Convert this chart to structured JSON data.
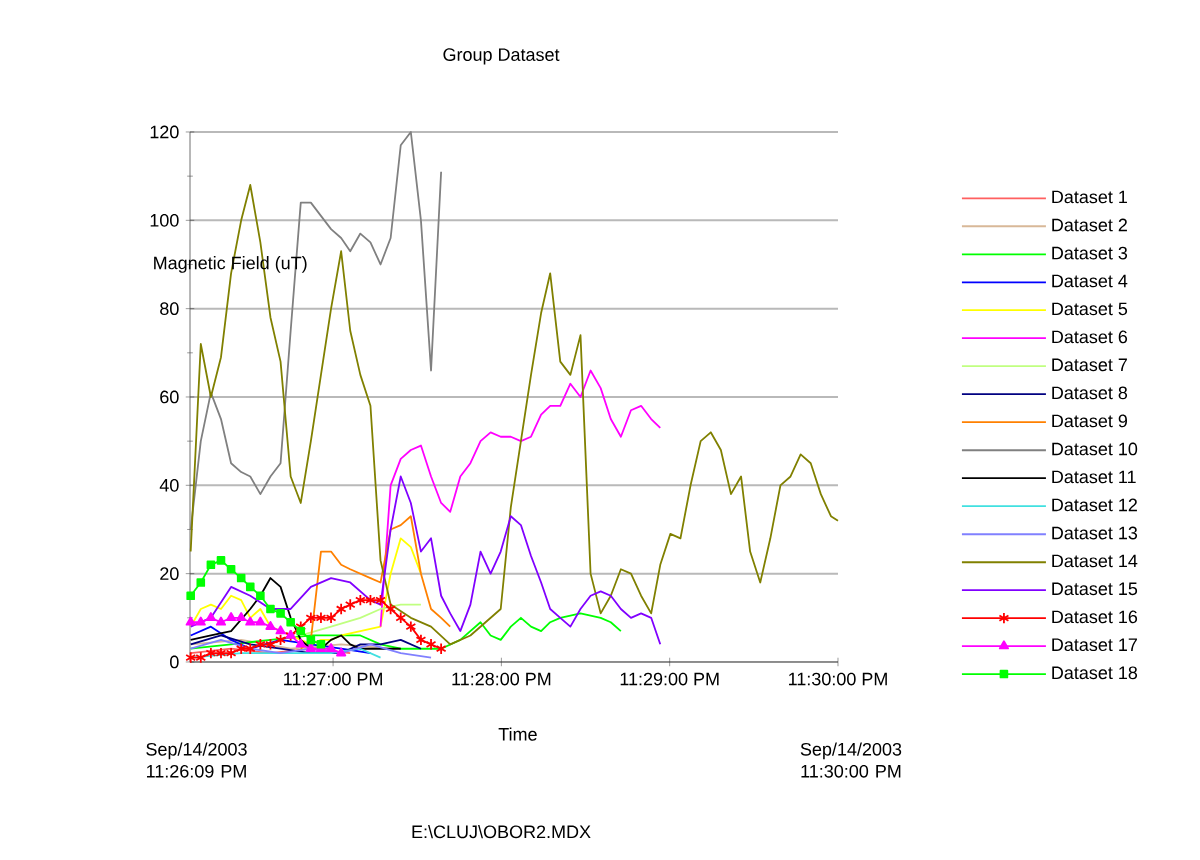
{
  "chart_data": {
    "type": "line",
    "title": "Group Dataset",
    "xlabel": "Time",
    "ylabel": "Magnetic Field (uT)",
    "xlim": [
      23.435833,
      23.5
    ],
    "ylim": [
      0,
      120
    ],
    "xticks": [
      {
        "value": 23.45,
        "label": "11:27:00 PM"
      },
      {
        "value": 23.466667,
        "label": "11:28:00 PM"
      },
      {
        "value": 23.483333,
        "label": "11:29:00 PM"
      },
      {
        "value": 23.5,
        "label": "11:30:00 PM"
      }
    ],
    "yticks": [
      0,
      20,
      40,
      60,
      80,
      100,
      120
    ],
    "grid": "y",
    "legend": "right",
    "annotations": [
      "Sep/14/2003 11:26:09 PM",
      "Sep/14/2003 11:30:00 PM",
      "E:\\CLUJ\\OBOR2.MDX"
    ],
    "series": [
      {
        "name": "Dataset 1",
        "color": "#ff6060",
        "x": [
          23.4359,
          23.4399,
          23.4438,
          23.4478,
          23.4517
        ],
        "values": [
          2,
          3,
          2,
          3,
          2
        ]
      },
      {
        "name": "Dataset 2",
        "color": "#d8b898",
        "x": [
          23.4359,
          23.4409,
          23.4458,
          23.4508,
          23.4557
        ],
        "values": [
          4,
          5,
          3,
          4,
          3
        ]
      },
      {
        "name": "Dataset 3",
        "color": "#00ff00",
        "x": [
          23.4359,
          23.4399,
          23.4438,
          23.4478,
          23.4508,
          23.4527,
          23.4547,
          23.4567,
          23.4587,
          23.4607,
          23.4626,
          23.4636,
          23.4646,
          23.4656,
          23.4666,
          23.4676,
          23.4686,
          23.4696,
          23.4706,
          23.4715,
          23.4725,
          23.4745,
          23.4765,
          23.4775,
          23.4785
        ],
        "values": [
          3,
          4,
          5,
          6,
          6,
          6,
          4,
          3,
          3,
          3,
          5,
          7,
          9,
          6,
          5,
          8,
          10,
          8,
          7,
          9,
          10,
          11,
          10,
          9,
          7
        ]
      },
      {
        "name": "Dataset 4",
        "color": "#0000ff",
        "x": [
          23.4359,
          23.4379,
          23.4399,
          23.4418,
          23.4448,
          23.4478,
          23.4508,
          23.4537
        ],
        "values": [
          6,
          8,
          5,
          3,
          5,
          4,
          3,
          2
        ]
      },
      {
        "name": "Dataset 5",
        "color": "#ffff00",
        "x": [
          23.4359,
          23.4369,
          23.4379,
          23.4389,
          23.4399,
          23.4409,
          23.4418,
          23.4428,
          23.4438,
          23.4448,
          23.4458,
          23.4468,
          23.4478,
          23.4488,
          23.4498,
          23.4508,
          23.4527,
          23.4547,
          23.4557,
          23.4567,
          23.4577,
          23.4587
        ],
        "values": [
          8,
          12,
          13,
          12,
          15,
          14,
          10,
          12,
          8,
          7,
          6,
          5,
          4,
          5,
          5,
          6,
          7,
          8,
          20,
          28,
          26,
          20
        ]
      },
      {
        "name": "Dataset 6",
        "color": "#ff00ff",
        "x": [
          23.4547,
          23.4557,
          23.4567,
          23.4577,
          23.4587,
          23.4597,
          23.4607,
          23.4616,
          23.4626,
          23.4636,
          23.4646,
          23.4656,
          23.4666,
          23.4676,
          23.4686,
          23.4696,
          23.4706,
          23.4715,
          23.4725,
          23.4735,
          23.4745,
          23.4755,
          23.4765,
          23.4775,
          23.4785,
          23.4795,
          23.4805,
          23.4815,
          23.4824
        ],
        "values": [
          8,
          40,
          46,
          48,
          49,
          42,
          36,
          34,
          42,
          45,
          50,
          52,
          51,
          51,
          50,
          51,
          56,
          58,
          58,
          63,
          60,
          66,
          62,
          55,
          51,
          57,
          58,
          55,
          53
        ]
      },
      {
        "name": "Dataset 7",
        "color": "#c0ff80",
        "x": [
          23.4468,
          23.4498,
          23.4527,
          23.4547,
          23.4567,
          23.4587
        ],
        "values": [
          6,
          8,
          10,
          12,
          13,
          13
        ]
      },
      {
        "name": "Dataset 8",
        "color": "#000080",
        "x": [
          23.4359,
          23.4389,
          23.4418,
          23.4448,
          23.4478,
          23.4508,
          23.4527,
          23.4547,
          23.4567,
          23.4587
        ],
        "values": [
          4,
          6,
          4,
          3,
          2,
          2,
          4,
          4,
          5,
          3
        ]
      },
      {
        "name": "Dataset 9",
        "color": "#ff8000",
        "x": [
          23.4468,
          23.4478,
          23.4488,
          23.4498,
          23.4508,
          23.4517,
          23.4527,
          23.4537,
          23.4547,
          23.4557,
          23.4567,
          23.4577,
          23.4587,
          23.4597,
          23.4607,
          23.4616
        ],
        "values": [
          3,
          5,
          25,
          25,
          22,
          21,
          20,
          19,
          18,
          30,
          31,
          33,
          20,
          12,
          10,
          8
        ]
      },
      {
        "name": "Dataset 10",
        "color": "#808080",
        "x": [
          23.4359,
          23.4369,
          23.4379,
          23.4389,
          23.4399,
          23.4409,
          23.4418,
          23.4428,
          23.4438,
          23.4448,
          23.4458,
          23.4468,
          23.4478,
          23.4488,
          23.4498,
          23.4508,
          23.4517,
          23.4527,
          23.4537,
          23.4547,
          23.4557,
          23.4567,
          23.4577,
          23.4587,
          23.4597,
          23.4607
        ],
        "values": [
          30,
          50,
          61,
          55,
          45,
          43,
          42,
          38,
          42,
          45,
          75,
          104,
          104,
          101,
          98,
          96,
          93,
          97,
          95,
          90,
          96,
          117,
          120,
          100,
          66,
          111
        ]
      },
      {
        "name": "Dataset 11",
        "color": "#000000",
        "x": [
          23.4359,
          23.4379,
          23.4399,
          23.4418,
          23.4428,
          23.4438,
          23.4448,
          23.4458,
          23.4468,
          23.4478,
          23.4488,
          23.4498,
          23.4508,
          23.4517,
          23.4527,
          23.4547,
          23.4567
        ],
        "values": [
          5,
          6,
          7,
          12,
          15,
          19,
          17,
          10,
          5,
          3,
          3,
          5,
          6,
          4,
          3,
          3,
          3
        ]
      },
      {
        "name": "Dataset 12",
        "color": "#40e0e0",
        "x": [
          23.4359,
          23.4409,
          23.4458,
          23.4498,
          23.4527,
          23.4547
        ],
        "values": [
          1,
          2,
          2,
          2,
          3,
          1
        ]
      },
      {
        "name": "Dataset 13",
        "color": "#8080ff",
        "x": [
          23.4359,
          23.4389,
          23.4418,
          23.4448,
          23.4478,
          23.4508,
          23.4537,
          23.4567,
          23.4597
        ],
        "values": [
          3,
          5,
          3,
          2,
          3,
          2,
          4,
          2,
          1
        ]
      },
      {
        "name": "Dataset 14",
        "color": "#808000",
        "x": [
          23.4359,
          23.4369,
          23.4379,
          23.4389,
          23.4399,
          23.4409,
          23.4418,
          23.4428,
          23.4438,
          23.4448,
          23.4458,
          23.4468,
          23.4478,
          23.4488,
          23.4498,
          23.4508,
          23.4517,
          23.4527,
          23.4537,
          23.4547,
          23.4557,
          23.4577,
          23.4597,
          23.4616,
          23.4636,
          23.4666,
          23.4676,
          23.4686,
          23.4696,
          23.4706,
          23.4715,
          23.4725,
          23.4735,
          23.4745,
          23.4755,
          23.4765,
          23.4775,
          23.4785,
          23.4795,
          23.4805,
          23.4815,
          23.4824,
          23.4834,
          23.4844,
          23.4854,
          23.4864,
          23.4874,
          23.4884,
          23.4894,
          23.4904,
          23.4913,
          23.4923,
          23.4933,
          23.4943,
          23.4953,
          23.4963,
          23.4973,
          23.4983,
          23.4993,
          23.5
        ],
        "values": [
          25,
          72,
          60,
          69,
          88,
          100,
          108,
          95,
          78,
          68,
          42,
          36,
          50,
          65,
          80,
          93,
          75,
          65,
          58,
          23,
          13,
          10,
          8,
          4,
          6,
          12,
          35,
          50,
          65,
          79,
          88,
          68,
          65,
          74,
          20,
          11,
          15,
          21,
          20,
          15,
          11,
          22,
          29,
          28,
          40,
          50,
          52,
          48,
          38,
          42,
          25,
          18,
          28,
          40,
          42,
          47,
          45,
          38,
          33,
          32
        ]
      },
      {
        "name": "Dataset 15",
        "color": "#8000ff",
        "x": [
          23.4359,
          23.4379,
          23.4399,
          23.4418,
          23.4438,
          23.4458,
          23.4478,
          23.4498,
          23.4517,
          23.4537,
          23.4547,
          23.4557,
          23.4567,
          23.4577,
          23.4587,
          23.4597,
          23.4607,
          23.4616,
          23.4626,
          23.4636,
          23.4646,
          23.4656,
          23.4666,
          23.4676,
          23.4686,
          23.4696,
          23.4706,
          23.4715,
          23.4725,
          23.4735,
          23.4745,
          23.4755,
          23.4765,
          23.4775,
          23.4785,
          23.4795,
          23.4805,
          23.4815,
          23.4824
        ],
        "values": [
          8,
          10,
          17,
          15,
          12,
          12,
          17,
          19,
          18,
          14,
          13,
          30,
          42,
          36,
          25,
          28,
          15,
          11,
          7,
          13,
          25,
          20,
          25,
          33,
          31,
          24,
          18,
          12,
          10,
          8,
          12,
          15,
          16,
          15,
          12,
          10,
          11,
          10,
          4
        ]
      },
      {
        "name": "Dataset 16",
        "color": "#ff0000",
        "marker": "cross",
        "x": [
          23.4359,
          23.4369,
          23.4379,
          23.4389,
          23.4399,
          23.4409,
          23.4418,
          23.4428,
          23.4438,
          23.4448,
          23.4458,
          23.4468,
          23.4478,
          23.4488,
          23.4498,
          23.4508,
          23.4517,
          23.4527,
          23.4537,
          23.4547,
          23.4557,
          23.4567,
          23.4577,
          23.4587,
          23.4597,
          23.4607
        ],
        "values": [
          1,
          1,
          2,
          2,
          2,
          3,
          3,
          4,
          4,
          5,
          6,
          8,
          10,
          10,
          10,
          12,
          13,
          14,
          14,
          14,
          12,
          10,
          8,
          5,
          4,
          3
        ]
      },
      {
        "name": "Dataset 17",
        "color": "#ff00ff",
        "marker": "triangle",
        "x": [
          23.4359,
          23.4369,
          23.4379,
          23.4389,
          23.4399,
          23.4409,
          23.4418,
          23.4428,
          23.4438,
          23.4448,
          23.4458,
          23.4468,
          23.4478,
          23.4488,
          23.4498,
          23.4508
        ],
        "values": [
          9,
          9,
          10,
          9,
          10,
          10,
          9,
          9,
          8,
          7,
          6,
          4,
          3,
          3,
          3,
          2
        ]
      },
      {
        "name": "Dataset 18",
        "color": "#00ff00",
        "marker": "square",
        "x": [
          23.4359,
          23.4369,
          23.4379,
          23.4389,
          23.4399,
          23.4409,
          23.4418,
          23.4428,
          23.4438,
          23.4448,
          23.4458,
          23.4468,
          23.4478,
          23.4488
        ],
        "values": [
          15,
          18,
          22,
          23,
          21,
          19,
          17,
          15,
          12,
          11,
          9,
          7,
          5,
          4
        ]
      }
    ]
  }
}
